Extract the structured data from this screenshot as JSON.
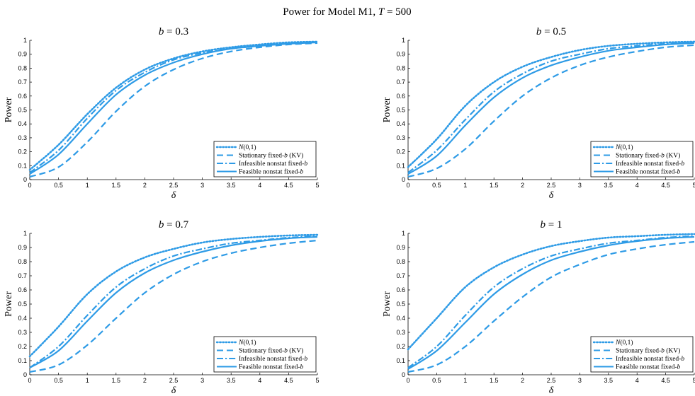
{
  "figure_title": "Power for Model M1, T = 500",
  "chart_data": [
    {
      "type": "line",
      "title": "b = 0.3",
      "xlabel": "δ",
      "ylabel": "Power",
      "xlim": [
        0,
        5
      ],
      "ylim": [
        0,
        1
      ],
      "xticks": [
        "0",
        "0.5",
        "1",
        "1.5",
        "2",
        "2.5",
        "3",
        "3.5",
        "4",
        "4.5",
        "5"
      ],
      "yticks": [
        "0",
        "0.1",
        "0.2",
        "0.3",
        "0.4",
        "0.5",
        "0.6",
        "0.7",
        "0.8",
        "0.9",
        "1"
      ],
      "x": [
        0,
        0.5,
        1,
        1.5,
        2,
        2.5,
        3,
        3.5,
        4,
        4.5,
        5
      ],
      "legend_position": "lower-right",
      "series": [
        {
          "name": "N(0,1)",
          "style": "dotted",
          "values": [
            0.07,
            0.25,
            0.47,
            0.66,
            0.79,
            0.87,
            0.92,
            0.95,
            0.97,
            0.985,
            0.99
          ]
        },
        {
          "name": "Stationary fixed-b (KV)",
          "style": "dashed",
          "values": [
            0.02,
            0.09,
            0.27,
            0.49,
            0.67,
            0.79,
            0.87,
            0.92,
            0.95,
            0.97,
            0.98
          ]
        },
        {
          "name": "Infeasible nonstat fixed-b",
          "style": "dashdot",
          "values": [
            0.05,
            0.21,
            0.44,
            0.64,
            0.77,
            0.86,
            0.91,
            0.94,
            0.96,
            0.98,
            0.99
          ]
        },
        {
          "name": "Feasible nonstat fixed-b",
          "style": "solid",
          "values": [
            0.04,
            0.18,
            0.4,
            0.61,
            0.75,
            0.84,
            0.9,
            0.94,
            0.96,
            0.975,
            0.985
          ]
        }
      ]
    },
    {
      "type": "line",
      "title": "b = 0.5",
      "xlabel": "δ",
      "ylabel": "Power",
      "xlim": [
        0,
        5
      ],
      "ylim": [
        0,
        1
      ],
      "xticks": [
        "0",
        "0.5",
        "1",
        "1.5",
        "2",
        "2.5",
        "3",
        "3.5",
        "4",
        "4.5",
        "5"
      ],
      "yticks": [
        "0",
        "0.1",
        "0.2",
        "0.3",
        "0.4",
        "0.5",
        "0.6",
        "0.7",
        "0.8",
        "0.9",
        "1"
      ],
      "x": [
        0,
        0.5,
        1,
        1.5,
        2,
        2.5,
        3,
        3.5,
        4,
        4.5,
        5
      ],
      "legend_position": "lower-right",
      "series": [
        {
          "name": "N(0,1)",
          "style": "dotted",
          "values": [
            0.09,
            0.29,
            0.53,
            0.7,
            0.81,
            0.88,
            0.93,
            0.96,
            0.975,
            0.985,
            0.99
          ]
        },
        {
          "name": "Stationary fixed-b (KV)",
          "style": "dashed",
          "values": [
            0.02,
            0.08,
            0.22,
            0.42,
            0.6,
            0.73,
            0.82,
            0.88,
            0.92,
            0.95,
            0.965
          ]
        },
        {
          "name": "Infeasible nonstat fixed-b",
          "style": "dashdot",
          "values": [
            0.05,
            0.21,
            0.43,
            0.63,
            0.76,
            0.85,
            0.9,
            0.94,
            0.96,
            0.975,
            0.985
          ]
        },
        {
          "name": "Feasible nonstat fixed-b",
          "style": "solid",
          "values": [
            0.04,
            0.17,
            0.39,
            0.59,
            0.73,
            0.82,
            0.88,
            0.925,
            0.95,
            0.97,
            0.98
          ]
        }
      ]
    },
    {
      "type": "line",
      "title": "b = 0.7",
      "xlabel": "δ",
      "ylabel": "Power",
      "xlim": [
        0,
        5
      ],
      "ylim": [
        0,
        1
      ],
      "xticks": [
        "0",
        "0.5",
        "1",
        "1.5",
        "2",
        "2.5",
        "3",
        "3.5",
        "4",
        "4.5",
        "5"
      ],
      "yticks": [
        "0",
        "0.1",
        "0.2",
        "0.3",
        "0.4",
        "0.5",
        "0.6",
        "0.7",
        "0.8",
        "0.9",
        "1"
      ],
      "x": [
        0,
        0.5,
        1,
        1.5,
        2,
        2.5,
        3,
        3.5,
        4,
        4.5,
        5
      ],
      "legend_position": "lower-right",
      "series": [
        {
          "name": "N(0,1)",
          "style": "dotted",
          "values": [
            0.13,
            0.34,
            0.57,
            0.73,
            0.83,
            0.89,
            0.935,
            0.96,
            0.975,
            0.985,
            0.99
          ]
        },
        {
          "name": "Stationary fixed-b (KV)",
          "style": "dashed",
          "values": [
            0.02,
            0.07,
            0.21,
            0.4,
            0.58,
            0.71,
            0.8,
            0.86,
            0.9,
            0.93,
            0.95
          ]
        },
        {
          "name": "Infeasible nonstat fixed-b",
          "style": "dashdot",
          "values": [
            0.05,
            0.2,
            0.42,
            0.62,
            0.75,
            0.84,
            0.89,
            0.93,
            0.95,
            0.97,
            0.98
          ]
        },
        {
          "name": "Feasible nonstat fixed-b",
          "style": "solid",
          "values": [
            0.05,
            0.17,
            0.38,
            0.58,
            0.72,
            0.81,
            0.87,
            0.915,
            0.945,
            0.965,
            0.975
          ]
        }
      ]
    },
    {
      "type": "line",
      "title": "b = 1",
      "xlabel": "δ",
      "ylabel": "Power",
      "xlim": [
        0,
        5
      ],
      "ylim": [
        0,
        1
      ],
      "xticks": [
        "0",
        "0.5",
        "1",
        "1.5",
        "2",
        "2.5",
        "3",
        "3.5",
        "4",
        "4.5",
        "5"
      ],
      "yticks": [
        "0",
        "0.1",
        "0.2",
        "0.3",
        "0.4",
        "0.5",
        "0.6",
        "0.7",
        "0.8",
        "0.9",
        "1"
      ],
      "x": [
        0,
        0.5,
        1,
        1.5,
        2,
        2.5,
        3,
        3.5,
        4,
        4.5,
        5
      ],
      "legend_position": "lower-right",
      "series": [
        {
          "name": "N(0,1)",
          "style": "dotted",
          "values": [
            0.18,
            0.4,
            0.62,
            0.76,
            0.85,
            0.91,
            0.945,
            0.97,
            0.98,
            0.99,
            0.995
          ]
        },
        {
          "name": "Stationary fixed-b (KV)",
          "style": "dashed",
          "values": [
            0.02,
            0.07,
            0.2,
            0.38,
            0.55,
            0.69,
            0.78,
            0.85,
            0.89,
            0.92,
            0.94
          ]
        },
        {
          "name": "Infeasible nonstat fixed-b",
          "style": "dashdot",
          "values": [
            0.05,
            0.2,
            0.42,
            0.62,
            0.75,
            0.84,
            0.89,
            0.93,
            0.95,
            0.97,
            0.98
          ]
        },
        {
          "name": "Feasible nonstat fixed-b",
          "style": "solid",
          "values": [
            0.04,
            0.17,
            0.37,
            0.57,
            0.71,
            0.81,
            0.87,
            0.915,
            0.945,
            0.965,
            0.975
          ]
        }
      ]
    }
  ],
  "colors": {
    "line": "#2e9be6",
    "axis": "#000000",
    "background": "#ffffff"
  }
}
